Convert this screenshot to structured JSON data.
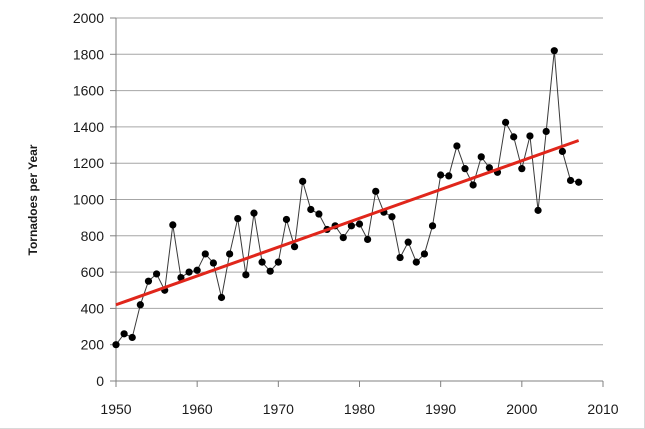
{
  "chart_data": {
    "type": "line",
    "title": "",
    "xlabel": "",
    "ylabel": "Tornadoes per Year",
    "xlim": [
      1950,
      2010
    ],
    "ylim": [
      0,
      2000
    ],
    "x_ticks": [
      1950,
      1960,
      1970,
      1980,
      1990,
      2000,
      2010
    ],
    "y_ticks": [
      0,
      200,
      400,
      600,
      800,
      1000,
      1200,
      1400,
      1600,
      1800,
      2000
    ],
    "grid": "horizontal",
    "colors": {
      "series": "#000000",
      "trend": "#e0261b",
      "grid": "#a6a6a6"
    },
    "series": [
      {
        "x": [
          1950,
          1951,
          1952,
          1953,
          1954,
          1955,
          1956,
          1957,
          1958,
          1959,
          1960,
          1961,
          1962,
          1963,
          1964,
          1965,
          1966,
          1967,
          1968,
          1969,
          1970,
          1971,
          1972,
          1973,
          1974,
          1975,
          1976,
          1977,
          1978,
          1979,
          1980,
          1981,
          1982,
          1983,
          1984,
          1985,
          1986,
          1987,
          1988,
          1989,
          1990,
          1991,
          1992,
          1993,
          1994,
          1995,
          1996,
          1997,
          1998,
          1999,
          2000,
          2001,
          2002,
          2003,
          2004,
          2005,
          2006,
          2007
        ],
        "values": [
          200,
          260,
          240,
          420,
          550,
          590,
          500,
          860,
          570,
          600,
          610,
          700,
          650,
          460,
          700,
          895,
          585,
          925,
          655,
          605,
          655,
          890,
          740,
          1100,
          945,
          920,
          835,
          855,
          790,
          855,
          865,
          780,
          1045,
          930,
          905,
          680,
          765,
          655,
          700,
          855,
          1135,
          1130,
          1295,
          1170,
          1080,
          1235,
          1175,
          1150,
          1425,
          1345,
          1170,
          1350,
          940,
          1375,
          1820,
          1265,
          1105,
          1095
        ]
      },
      {
        "x": [
          1950,
          2007
        ],
        "values": [
          420,
          1325
        ]
      }
    ]
  }
}
